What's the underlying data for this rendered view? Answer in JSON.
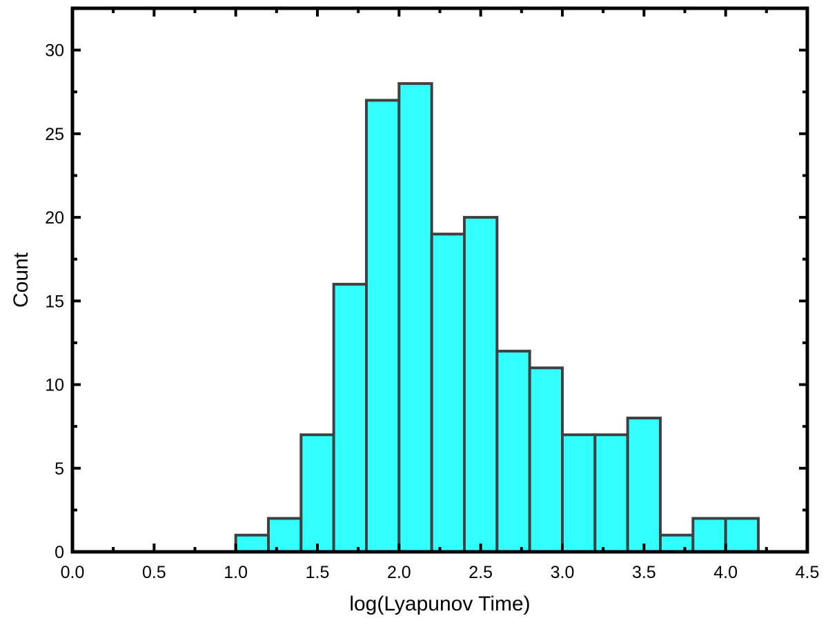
{
  "chart_data": {
    "type": "bar",
    "title": "",
    "xlabel": "log(Lyapunov Time)",
    "ylabel": "Count",
    "xlim": [
      0.0,
      4.5
    ],
    "ylim": [
      0,
      32.5
    ],
    "x_ticks": [
      "0.0",
      "0.5",
      "1.0",
      "1.5",
      "2.0",
      "2.5",
      "3.0",
      "3.5",
      "4.0",
      "4.5"
    ],
    "y_ticks": [
      "0",
      "5",
      "10",
      "15",
      "20",
      "25",
      "30"
    ],
    "bin_width": 0.2,
    "bins": [
      {
        "start": 1.0,
        "count": 1
      },
      {
        "start": 1.2,
        "count": 2
      },
      {
        "start": 1.4,
        "count": 7
      },
      {
        "start": 1.6,
        "count": 16
      },
      {
        "start": 1.8,
        "count": 27
      },
      {
        "start": 2.0,
        "count": 28
      },
      {
        "start": 2.2,
        "count": 19
      },
      {
        "start": 2.4,
        "count": 20
      },
      {
        "start": 2.6,
        "count": 12
      },
      {
        "start": 2.8,
        "count": 11
      },
      {
        "start": 3.0,
        "count": 7
      },
      {
        "start": 3.2,
        "count": 7
      },
      {
        "start": 3.4,
        "count": 8
      },
      {
        "start": 3.6,
        "count": 1
      },
      {
        "start": 3.8,
        "count": 2
      },
      {
        "start": 4.0,
        "count": 2
      }
    ],
    "grid": false,
    "legend": "none",
    "colors": {
      "bar_fill": "#33FFFF",
      "bar_stroke": "#404040",
      "axis": "#000000"
    }
  }
}
